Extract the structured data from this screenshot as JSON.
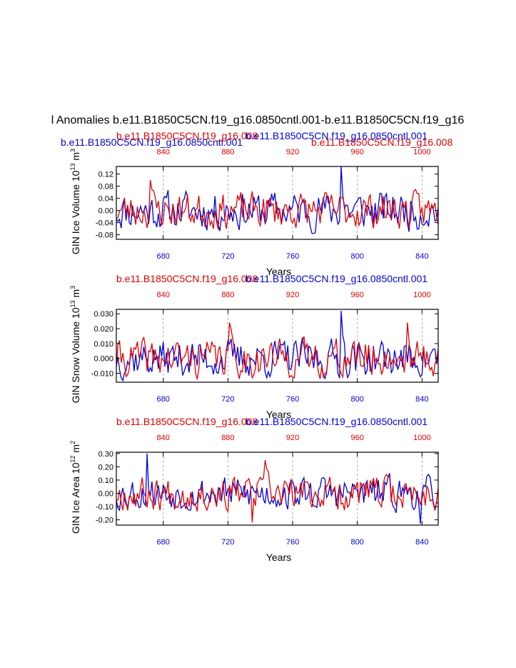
{
  "title": "l Anomalies b.e11.B1850C5CN.f19_g16.0850cntl.001-b.e11.B1850C5CN.f19_g16",
  "legend_blue_top": "b.e11.B1850C5CN.f19_g16.0850cntl.001",
  "legend_red_top": "b.e11.B1850C5CN.f19_g16.008",
  "colors": {
    "case1": "#0000d8",
    "case2": "#e00000",
    "axis": "#000000",
    "grid": "#999999"
  },
  "chart_data": [
    {
      "type": "line",
      "title_red": "b.e11.B1850C5CN.f19_g16.008",
      "title_blue": "b.e11.B1850C5CN.f19_g16.0850cntl.001",
      "ylabel": "GIN Ice Volume 10",
      "ylabel_exp": "13",
      "ylabel_unit": "m",
      "ylabel_unit_exp": "3",
      "xlabel": "Years",
      "ylim": [
        -0.095,
        0.145
      ],
      "yticks": [
        0.12,
        0.08,
        0.04,
        0.0,
        -0.04,
        -0.08
      ],
      "ytick_labels": [
        "0.12",
        "0.08",
        "0.04",
        "0.00",
        "-0.04",
        "-0.08"
      ],
      "x_bottom_range": [
        651,
        850
      ],
      "x_bottom_ticks": [
        "680",
        "720",
        "760",
        "800",
        "840"
      ],
      "x_top_range": [
        811,
        1010
      ],
      "x_top_ticks": [
        "840",
        "880",
        "920",
        "960",
        "1000"
      ],
      "series": [
        {
          "name": "b.e11.B1850C5CN.f19_g16.0850cntl.001",
          "color": "#0000d8",
          "seed": 11,
          "amp": 0.045,
          "peaks": [
            [
              790,
              0.145
            ]
          ]
        },
        {
          "name": "b.e11.B1850C5CN.f19_g16.008",
          "color": "#e00000",
          "seed": 23,
          "amp": 0.042,
          "peaks": [
            [
              672,
              0.1
            ]
          ]
        }
      ]
    },
    {
      "type": "line",
      "title_red": "b.e11.B1850C5CN.f19_g16.008",
      "title_blue": "b.e11.B1850C5CN.f19_g16.0850cntl.001",
      "ylabel": "GIN Snow Volume 10",
      "ylabel_exp": "13",
      "ylabel_unit": "m",
      "ylabel_unit_exp": "3",
      "xlabel": "Years",
      "ylim": [
        -0.016,
        0.033
      ],
      "yticks": [
        0.03,
        0.02,
        0.01,
        0.0,
        -0.01
      ],
      "ytick_labels": [
        "0.030",
        "0.020",
        "0.010",
        "0.000",
        "-0.010"
      ],
      "x_bottom_range": [
        651,
        850
      ],
      "x_bottom_ticks": [
        "680",
        "720",
        "760",
        "800",
        "840"
      ],
      "x_top_range": [
        811,
        1010
      ],
      "x_top_ticks": [
        "840",
        "880",
        "920",
        "960",
        "1000"
      ],
      "series": [
        {
          "name": "b.e11.B1850C5CN.f19_g16.0850cntl.001",
          "color": "#0000d8",
          "seed": 37,
          "amp": 0.009,
          "peaks": [
            [
              790,
              0.032
            ]
          ]
        },
        {
          "name": "b.e11.B1850C5CN.f19_g16.008",
          "color": "#e00000",
          "seed": 41,
          "amp": 0.009,
          "peaks": [
            [
              721,
              0.024
            ],
            [
              831,
              0.024
            ]
          ]
        }
      ]
    },
    {
      "type": "line",
      "title_red": "b.e11.B1850C5CN.f19_g16.008",
      "title_blue": "b.e11.B1850C5CN.f19_g16.0850cntl.001",
      "ylabel": "GIN Ice Area 10",
      "ylabel_exp": "12",
      "ylabel_unit": "m",
      "ylabel_unit_exp": "2",
      "xlabel": "Years",
      "ylim": [
        -0.24,
        0.31
      ],
      "yticks": [
        0.3,
        0.2,
        0.1,
        0.0,
        -0.1,
        -0.2
      ],
      "ytick_labels": [
        "0.30",
        "0.20",
        "0.10",
        "0.00",
        "-0.10",
        "-0.20"
      ],
      "x_bottom_range": [
        651,
        850
      ],
      "x_bottom_ticks": [
        "680",
        "720",
        "760",
        "800",
        "840"
      ],
      "x_top_range": [
        811,
        1010
      ],
      "x_top_ticks": [
        "840",
        "880",
        "920",
        "960",
        "1000"
      ],
      "series": [
        {
          "name": "b.e11.B1850C5CN.f19_g16.0850cntl.001",
          "color": "#0000d8",
          "seed": 53,
          "amp": 0.09,
          "peaks": [
            [
              670,
              0.3
            ],
            [
              839,
              -0.23
            ]
          ]
        },
        {
          "name": "b.e11.B1850C5CN.f19_g16.008",
          "color": "#e00000",
          "seed": 67,
          "amp": 0.09,
          "peaks": [
            [
              743,
              0.25
            ],
            [
              735,
              -0.22
            ]
          ]
        }
      ]
    }
  ]
}
